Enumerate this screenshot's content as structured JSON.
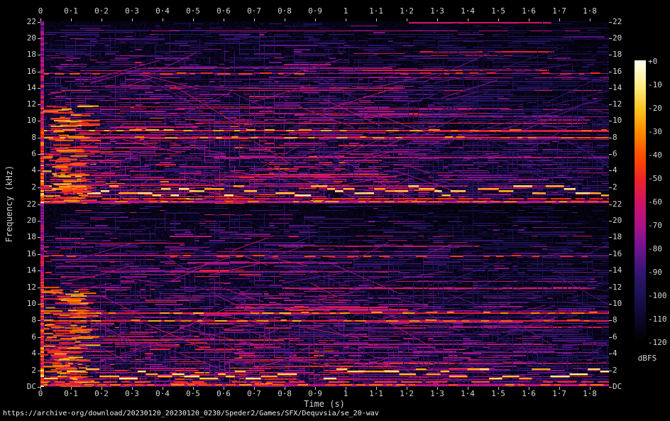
{
  "window": {
    "background": "#000000"
  },
  "footer": {
    "url": "https://archive·org/download/20230120_20230120_0230/Speder2/Games/SFX/Dequvsia/se_20·wav"
  },
  "chart_data": {
    "type": "heatmap",
    "subtype": "audio-spectrogram",
    "tool_style": "SoX spectrogram, stereo (two stacked channels)",
    "channels": 2,
    "xlabel": "Time (s)",
    "ylabel": "Frequency (kHz)",
    "x_range_s": [
      0,
      1.86
    ],
    "x_tick_labels": [
      "0",
      "0·1",
      "0·2",
      "0·3",
      "0·4",
      "0·5",
      "0·6",
      "0·7",
      "0·8",
      "0·9",
      "1",
      "1·1",
      "1·2",
      "1·3",
      "1·4",
      "1·5",
      "1·6",
      "1·7",
      "1·8"
    ],
    "y_range_khz": [
      0,
      22.05
    ],
    "y_tick_labels": [
      "22",
      "20",
      "18",
      "16",
      "14",
      "12",
      "10",
      "8",
      "6",
      "4",
      "2"
    ],
    "y_bottom_label": "DC",
    "grid": false,
    "legend_position": "right-colorbar",
    "colorbar": {
      "unit": "dBFS",
      "range_db": [
        0,
        -120
      ],
      "tick_labels": [
        "+0",
        "-10",
        "-20",
        "-30",
        "-40",
        "-50",
        "-60",
        "-70",
        "-80",
        "-90",
        "-100",
        "-110",
        "-120"
      ],
      "stops": [
        {
          "t": 0.0,
          "c": "#000000"
        },
        {
          "t": 0.083,
          "c": "#0d0628"
        },
        {
          "t": 0.167,
          "c": "#1a1152"
        },
        {
          "t": 0.25,
          "c": "#321670"
        },
        {
          "t": 0.333,
          "c": "#6d1390"
        },
        {
          "t": 0.417,
          "c": "#a81387"
        },
        {
          "t": 0.5,
          "c": "#d01363"
        },
        {
          "t": 0.583,
          "c": "#ee2424"
        },
        {
          "t": 0.667,
          "c": "#ff5000"
        },
        {
          "t": 0.75,
          "c": "#ff8e00"
        },
        {
          "t": 0.833,
          "c": "#ffc826"
        },
        {
          "t": 0.917,
          "c": "#ffee8e"
        },
        {
          "t": 1.0,
          "c": "#fffff2"
        }
      ]
    },
    "salient_features": {
      "melody_band_khz": [
        1.1,
        2.2
      ],
      "persistent_tones_khz": [
        8.05,
        8.95,
        15.8
      ],
      "dc_line": true,
      "density_profile": "dense bright chip-tune lattice 0–0.9 s (red/orange, up to -20 dBFS), sparser dark blue/purple after 1.0 s; bright stepped melody line near 1–2 kHz and hot DC line across full duration in both channels",
      "description": "Dense lattice of short horizontal note-harmonic segments with vertical onset connectors and occasional diagonal sweeps; intensity strongest at low frequencies and early times"
    },
    "render": {
      "channel_seeds": [
        101,
        202
      ]
    }
  },
  "text_color": "#d4d4d4"
}
